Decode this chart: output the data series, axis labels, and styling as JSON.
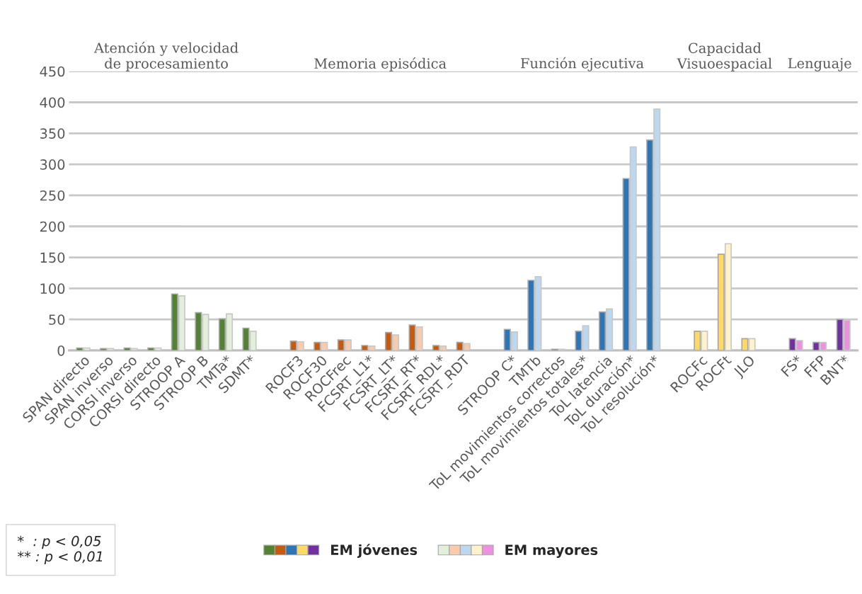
{
  "chart_data": {
    "type": "bar",
    "categories": [
      "SPAN directo",
      "SPAN inverso",
      "CORSI inverso",
      "CORSI directo",
      "STROOP A",
      "STROOP B",
      "TMTa*",
      "SDMT*",
      null,
      "ROCF3",
      "ROCF30",
      "ROCFrec",
      "FCSRT_L1*",
      "FCSRT_LT*",
      "FCSRT_RT*",
      "FCSRT_RDL*",
      "FCSRT_RDT",
      null,
      "STROOP C*",
      "TMTb",
      "ToL movimientos correctos",
      "ToL movimientos totales*",
      "ToL latencia",
      "ToL duración*",
      "ToL resolución*",
      null,
      "ROCFc",
      "ROCFt",
      "JLO",
      null,
      "FS*",
      "FFP",
      "BNT*"
    ],
    "series": [
      {
        "name": "EM jóvenes",
        "values": [
          4,
          3,
          4,
          4,
          91,
          61,
          51,
          36,
          null,
          15,
          13,
          17,
          8,
          29,
          41,
          8,
          13,
          null,
          34,
          113,
          2,
          31,
          62,
          277,
          339,
          null,
          31,
          155,
          19,
          null,
          19,
          13,
          50
        ],
        "colors": [
          "#548235",
          "#548235",
          "#548235",
          "#548235",
          "#548235",
          "#548235",
          "#548235",
          "#548235",
          null,
          "#c55a11",
          "#c55a11",
          "#c55a11",
          "#c55a11",
          "#c55a11",
          "#c55a11",
          "#c55a11",
          "#c55a11",
          null,
          "#2e75b6",
          "#2e75b6",
          "#2e75b6",
          "#2e75b6",
          "#2e75b6",
          "#2e75b6",
          "#2e75b6",
          null,
          "#ffd966",
          "#ffd966",
          "#ffd966",
          null,
          "#7030a0",
          "#7030a0",
          "#7030a0"
        ]
      },
      {
        "name": "EM mayores",
        "values": [
          4,
          3,
          3,
          4,
          88,
          58,
          59,
          31,
          null,
          14,
          13,
          17,
          7,
          25,
          38,
          7,
          11,
          null,
          30,
          119,
          2,
          40,
          67,
          328,
          389,
          null,
          31,
          172,
          19,
          null,
          16,
          13,
          49
        ],
        "colors": [
          "#e2efda",
          "#e2efda",
          "#e2efda",
          "#e2efda",
          "#e2efda",
          "#e2efda",
          "#e2efda",
          "#e2efda",
          null,
          "#f8cbad",
          "#f8cbad",
          "#f8cbad",
          "#f8cbad",
          "#f8cbad",
          "#f8cbad",
          "#f8cbad",
          "#f8cbad",
          null,
          "#bdd7ee",
          "#bdd7ee",
          "#bdd7ee",
          "#bdd7ee",
          "#bdd7ee",
          "#bdd7ee",
          "#bdd7ee",
          null,
          "#fff2cc",
          "#fff2cc",
          "#fff2cc",
          null,
          "#ea93dc",
          "#ea93dc",
          "#ea93dc"
        ]
      }
    ],
    "ylim": [
      0,
      450
    ],
    "yticks": [
      0,
      50,
      100,
      150,
      200,
      250,
      300,
      350,
      400,
      450
    ],
    "grid": "y",
    "legend": "bottom",
    "annotations": [
      "Atención y velocidad\nde procesamiento",
      "Memoria episódica",
      "Función ejecutiva",
      "Capacidad\nVisuoespacial",
      "Lenguaje",
      "*  : p < 0,05\n** : p < 0,01"
    ]
  }
}
